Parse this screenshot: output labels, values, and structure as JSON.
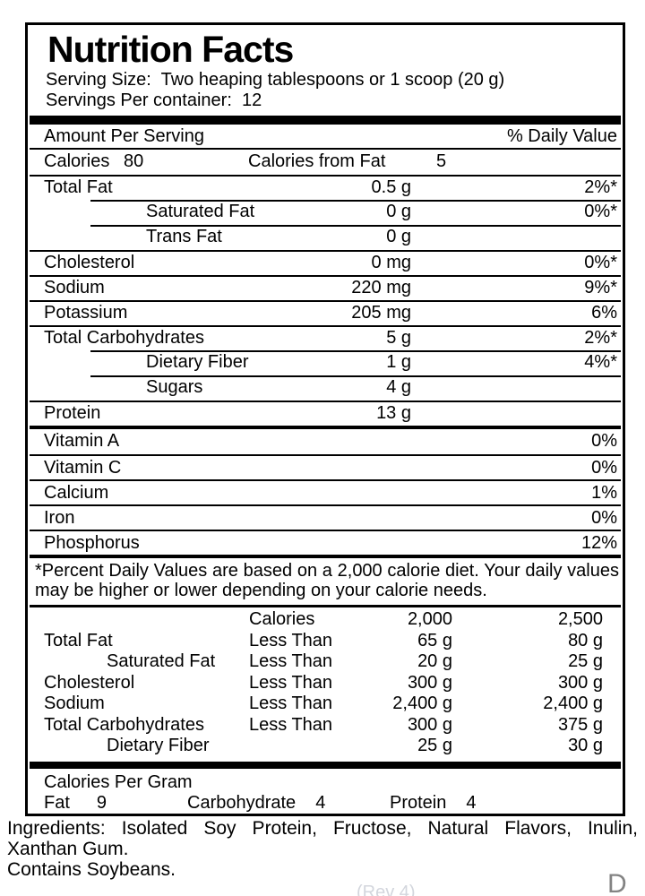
{
  "nutrition": {
    "title": "Nutrition Facts",
    "serving_size": {
      "label": "Serving Size:",
      "value": "Two heaping tablespoons or 1 scoop (20 g)"
    },
    "servings_per_container": {
      "label": "Servings Per container:",
      "value": "12"
    },
    "amount_per_serving": "Amount Per Serving",
    "daily_value_header": "% Daily Value",
    "calories": {
      "label": "Calories",
      "value": "80"
    },
    "calories_from_fat": {
      "label": "Calories from Fat",
      "value": "5"
    },
    "nutrients": [
      {
        "name": "Total Fat",
        "amount": "0.5 g",
        "dv": "2%*"
      },
      {
        "name": "Saturated Fat",
        "amount": "0 g",
        "dv": "0%*"
      },
      {
        "name": "Trans Fat",
        "amount": "0 g",
        "dv": ""
      },
      {
        "name": "Cholesterol",
        "amount": "0 mg",
        "dv": "0%*"
      },
      {
        "name": "Sodium",
        "amount": "220 mg",
        "dv": "9%*"
      },
      {
        "name": "Potassium",
        "amount": "205 mg",
        "dv": "6%"
      },
      {
        "name": "Total Carbohydrates",
        "amount": "5 g",
        "dv": "2%*"
      },
      {
        "name": "Dietary Fiber",
        "amount": "1 g",
        "dv": "4%*"
      },
      {
        "name": "Sugars",
        "amount": "4 g",
        "dv": ""
      },
      {
        "name": "Protein",
        "amount": "13 g",
        "dv": ""
      }
    ],
    "micronutrients": [
      {
        "name": "Vitamin A",
        "dv": "0%"
      },
      {
        "name": "Vitamin C",
        "dv": "0%"
      },
      {
        "name": "Calcium",
        "dv": "1%"
      },
      {
        "name": "Iron",
        "dv": "0%"
      },
      {
        "name": "Phosphorus",
        "dv": "12%"
      }
    ],
    "footnote_line1": "*Percent Daily Values are based on a 2,000 calorie diet.  Your daily values",
    "footnote_line2": "may be higher or lower depending on your calorie needs.",
    "reference_table": {
      "header": {
        "qualifier": "Calories",
        "v2000": "2,000",
        "v2500": "2,500"
      },
      "rows": [
        {
          "name": "Total Fat",
          "qualifier": "Less Than",
          "v2000": "65 g",
          "v2500": "80 g"
        },
        {
          "name": "Saturated Fat",
          "qualifier": "Less Than",
          "v2000": "20 g",
          "v2500": "25 g"
        },
        {
          "name": "Cholesterol",
          "qualifier": "Less Than",
          "v2000": "300 g",
          "v2500": "300 g"
        },
        {
          "name": "Sodium",
          "qualifier": "Less Than",
          "v2000": "2,400 g",
          "v2500": "2,400 g"
        },
        {
          "name": "Total Carbohydrates",
          "qualifier": "Less Than",
          "v2000": "300 g",
          "v2500": "375 g"
        },
        {
          "name": "Dietary Fiber",
          "qualifier": "",
          "v2000": "25 g",
          "v2500": "30 g"
        }
      ]
    },
    "calories_per_gram": {
      "title": "Calories Per Gram",
      "items": [
        {
          "name": "Fat",
          "value": "9"
        },
        {
          "name": "Carbohydrate",
          "value": "4"
        },
        {
          "name": "Protein",
          "value": "4"
        }
      ]
    },
    "ingredients_line1": "Ingredients:  Isolated Soy Protein, Fructose, Natural Flavors, Inulin,",
    "ingredients_line2": "Xanthan Gum.",
    "contains": "Contains Soybeans.",
    "artifacts": {
      "rev_text": "(Rev 4)",
      "partial_letter": "D"
    },
    "colors": {
      "text": "#000000",
      "background": "#ffffff",
      "faint_gray": "#d3d6dd"
    }
  }
}
